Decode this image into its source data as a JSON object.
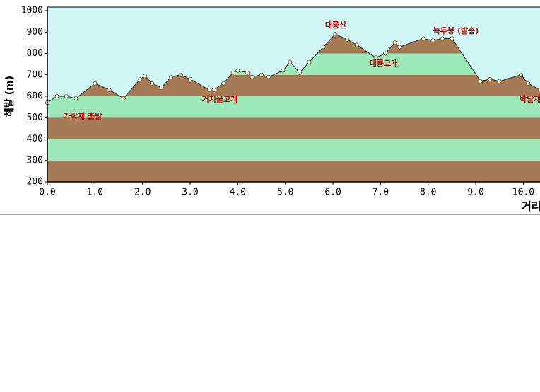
{
  "chart_data": {
    "type": "elevation-profile",
    "x_label": "거리",
    "y_label": "해발 (m)",
    "x": [
      0.0,
      0.2,
      0.4,
      0.6,
      1.0,
      1.3,
      1.6,
      1.95,
      2.05,
      2.2,
      2.4,
      2.6,
      2.8,
      3.0,
      3.4,
      3.5,
      3.7,
      3.9,
      4.0,
      4.2,
      4.3,
      4.5,
      4.65,
      4.95,
      5.1,
      5.3,
      5.5,
      5.8,
      6.05,
      6.3,
      6.5,
      6.9,
      7.1,
      7.3,
      7.4,
      7.9,
      8.1,
      8.3,
      8.5,
      9.1,
      9.3,
      9.5,
      9.95,
      10.1,
      10.35
    ],
    "values": [
      570,
      600,
      600,
      590,
      660,
      630,
      590,
      680,
      695,
      660,
      640,
      690,
      700,
      680,
      630,
      630,
      660,
      710,
      720,
      710,
      690,
      700,
      690,
      720,
      760,
      710,
      760,
      830,
      890,
      865,
      840,
      780,
      800,
      850,
      830,
      870,
      860,
      870,
      870,
      670,
      680,
      670,
      700,
      660,
      630
    ],
    "xlim": [
      0,
      10.35
    ],
    "ylim": [
      200,
      1000
    ],
    "xticks": [
      {
        "value": 0,
        "label": "0.0"
      },
      {
        "value": 1,
        "label": "1.0"
      },
      {
        "value": 2,
        "label": "2.0"
      },
      {
        "value": 3,
        "label": "3.0"
      },
      {
        "value": 4,
        "label": "4.0"
      },
      {
        "value": 5,
        "label": "5.0"
      },
      {
        "value": 6,
        "label": "6.0"
      },
      {
        "value": 7,
        "label": "7.0"
      },
      {
        "value": 8,
        "label": "8.0"
      },
      {
        "value": 9,
        "label": "9.0"
      },
      {
        "value": 10,
        "label": "10.0"
      }
    ],
    "yticks": [
      200,
      300,
      400,
      500,
      600,
      700,
      800,
      900,
      1000
    ],
    "band_colors": [
      "#a57b55",
      "#9de9b9"
    ],
    "background_color": "#d2f7f7",
    "line_color": "#3a3a3a",
    "point_color": "#ffffc8",
    "annotations": [
      "대룡산",
      "녹두봉 (발송)",
      "대룡고개",
      "거지울고개",
      "가락재 출발",
      "박달재"
    ]
  }
}
